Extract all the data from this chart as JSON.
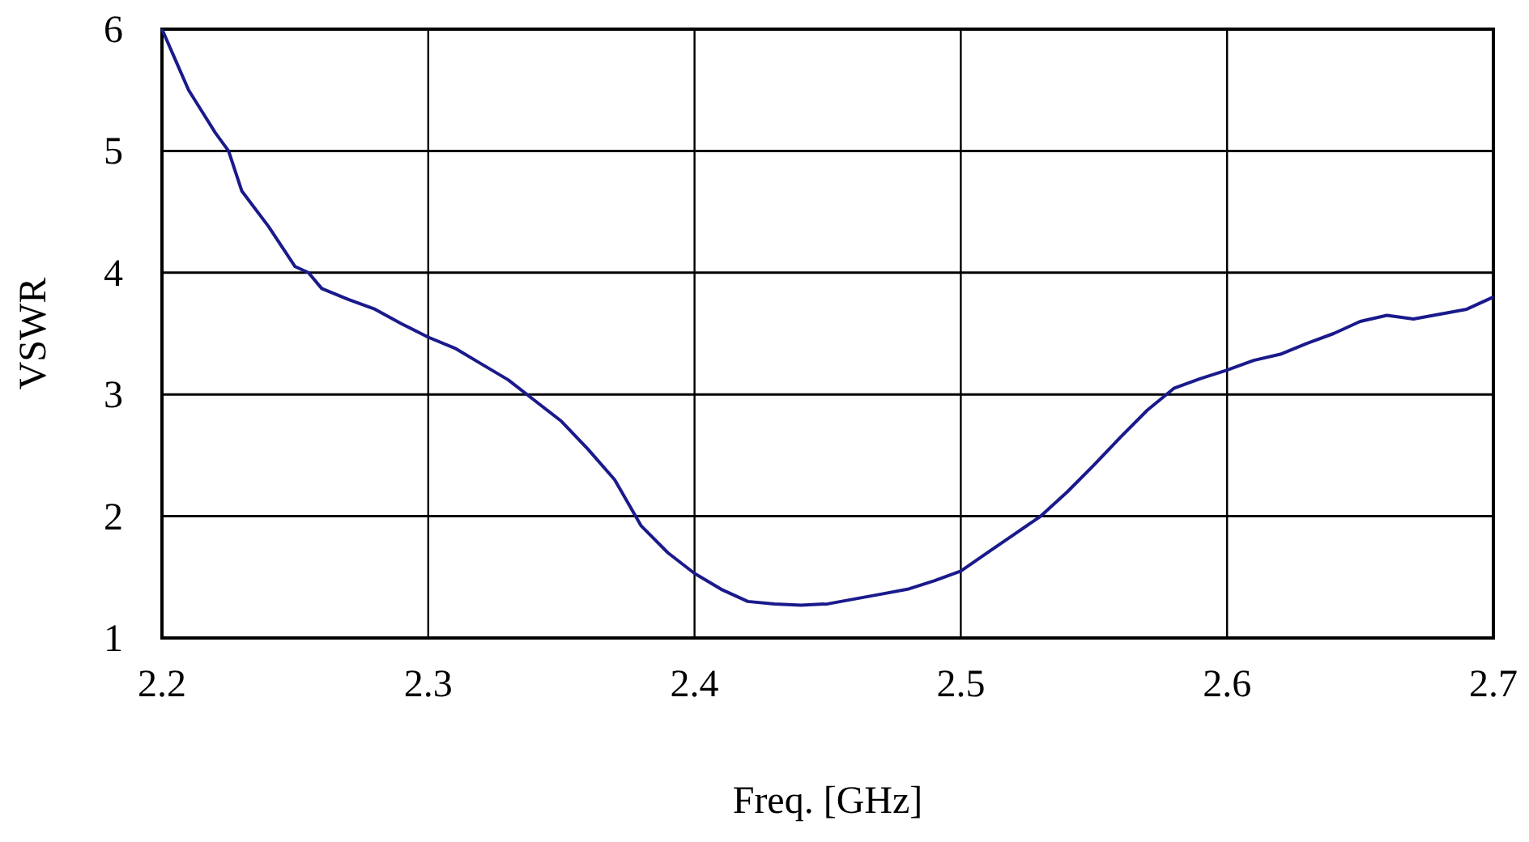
{
  "chart_data": {
    "type": "line",
    "xlabel": "Freq. [GHz]",
    "ylabel": "VSWR",
    "xlim": [
      2.2,
      2.7
    ],
    "xticks": [
      2.2,
      2.3,
      2.4,
      2.5,
      2.6,
      2.7
    ],
    "ylim": [
      1,
      6
    ],
    "yticks": [
      1,
      2,
      3,
      4,
      5,
      6
    ],
    "grid": true,
    "marker": "none",
    "line_style": "solid",
    "x": [
      2.2,
      2.205,
      2.21,
      2.22,
      2.225,
      2.23,
      2.24,
      2.25,
      2.255,
      2.26,
      2.27,
      2.28,
      2.29,
      2.3,
      2.31,
      2.32,
      2.33,
      2.34,
      2.35,
      2.36,
      2.37,
      2.38,
      2.39,
      2.4,
      2.41,
      2.42,
      2.43,
      2.44,
      2.45,
      2.46,
      2.47,
      2.48,
      2.49,
      2.5,
      2.51,
      2.52,
      2.53,
      2.54,
      2.55,
      2.56,
      2.57,
      2.58,
      2.59,
      2.6,
      2.61,
      2.62,
      2.63,
      2.64,
      2.65,
      2.66,
      2.67,
      2.68,
      2.69,
      2.7
    ],
    "series": [
      {
        "color": "#1a1a8c",
        "values": [
          6.0,
          5.75,
          5.5,
          5.15,
          5.0,
          4.67,
          4.38,
          4.05,
          4.0,
          3.87,
          3.78,
          3.7,
          3.58,
          3.47,
          3.38,
          3.25,
          3.12,
          2.95,
          2.78,
          2.55,
          2.3,
          1.92,
          1.7,
          1.53,
          1.4,
          1.3,
          1.28,
          1.27,
          1.28,
          1.32,
          1.36,
          1.4,
          1.47,
          1.55,
          1.7,
          1.85,
          2.0,
          2.2,
          2.42,
          2.65,
          2.87,
          3.05,
          3.13,
          3.2,
          3.28,
          3.33,
          3.42,
          3.5,
          3.6,
          3.65,
          3.62,
          3.66,
          3.7,
          3.8
        ]
      }
    ]
  }
}
